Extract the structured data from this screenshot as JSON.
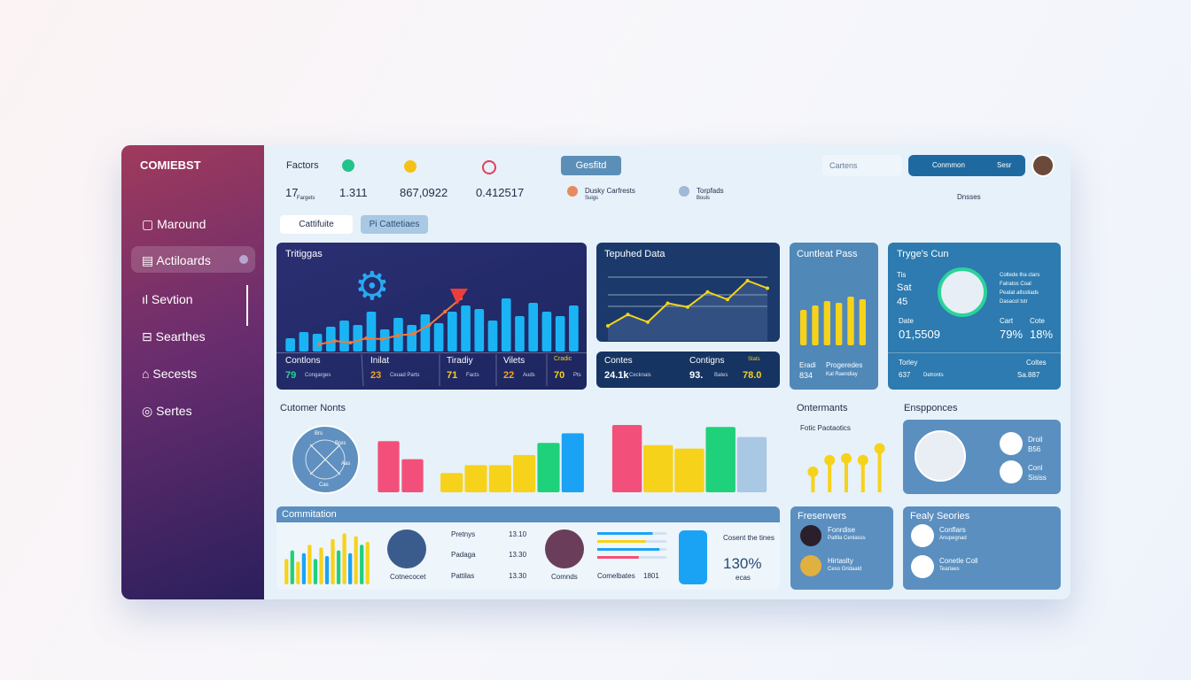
{
  "sidebar": {
    "brand": "COMIEBST",
    "items": [
      "Maround",
      "Actiloards",
      "Sevtion",
      "Searthes",
      "Secests",
      "Sertes"
    ]
  },
  "topbar": {
    "stats": [
      {
        "label": "Factors",
        "value": "17",
        "note": "Fargets"
      },
      {
        "value": "1.311"
      },
      {
        "value": "867,0922"
      },
      {
        "value": "0.412517"
      }
    ],
    "button": "Gesfitd",
    "users": [
      {
        "name": "Dusky Carfrests",
        "role": "Suigs"
      },
      {
        "name": "Torpfads",
        "role": "Bouls"
      }
    ],
    "search": "Cartens",
    "actions": [
      "Conmmon",
      "Sesr"
    ],
    "menu": "Dnsses"
  },
  "tabs": [
    "Cattifuite",
    "Pi Cattetiaes"
  ],
  "trends": {
    "title": "Tritiggas",
    "chart": {
      "type": "bar",
      "values": [
        15,
        22,
        20,
        28,
        35,
        30,
        45,
        25,
        38,
        30,
        42,
        32,
        45,
        52,
        48,
        35,
        60,
        40,
        55,
        45,
        40,
        52
      ],
      "ylim": [
        0,
        100
      ],
      "color": "#1ab4f5"
    },
    "line": {
      "values": [
        8,
        12,
        10,
        15,
        14,
        18,
        20,
        30,
        45,
        60
      ],
      "ylim": [
        0,
        100
      ],
      "color": "#f07a3a"
    },
    "stats": [
      {
        "label": "Contlons",
        "value": "79",
        "note": "Congarges"
      },
      {
        "label": "Inilat",
        "value": "23",
        "note": "Ceuad Parts"
      },
      {
        "label": "Tiradiy",
        "value": "71",
        "note": "Facts"
      },
      {
        "label": "Vilets",
        "value": "22",
        "note": "Auds"
      },
      {
        "label": "Cradic",
        "value": "70",
        "note": "Pts"
      }
    ]
  },
  "data_panel": {
    "title": "Tepuhed Data",
    "chart": {
      "type": "line",
      "values": [
        20,
        35,
        25,
        50,
        45,
        65,
        55,
        80,
        70
      ],
      "ylim": [
        0,
        100
      ],
      "color": "#f5d31c"
    },
    "stats": [
      {
        "label": "Contes",
        "value": "24.1k",
        "note": "Cecknais"
      },
      {
        "label": "Contigns",
        "value": "93.",
        "note": "Bates"
      },
      {
        "label": "Stats",
        "value": "78.0"
      }
    ]
  },
  "pass_panel": {
    "title": "Cuntleat Pass",
    "chart": {
      "type": "bar",
      "values": [
        40,
        45,
        50,
        48,
        55,
        52
      ],
      "ylim": [
        0,
        100
      ],
      "color": "#f7d21a"
    },
    "stats": [
      {
        "label": "Eradi",
        "value": "834"
      },
      {
        "label": "Progeredes",
        "value": "Kal Raendiay"
      }
    ]
  },
  "cun_panel": {
    "title": "Tryge's Cun",
    "rows": [
      {
        "label": "Tis",
        "value": "Sat"
      },
      {
        "label": "45"
      }
    ],
    "info": [
      "Coltede tha ctars",
      "Falratos Coal",
      "Peatat atlsstiads",
      "Dasacol tstr"
    ],
    "mid": [
      {
        "label": "Date",
        "value": "01,5509"
      },
      {
        "label": "Cart",
        "value": "79%"
      },
      {
        "label": "Cote",
        "value": "18%"
      }
    ],
    "foot": [
      {
        "label": "Torley",
        "value": "637",
        "note": "Detronts"
      },
      {
        "label": "Coltes",
        "value": "Sa.887"
      }
    ]
  },
  "customers": {
    "title": "Cutomer Nonts",
    "donut": [
      "Brs",
      "Bres",
      "Aas",
      "Cas"
    ],
    "pink": {
      "type": "bar",
      "values": [
        85,
        55
      ],
      "ylim": [
        0,
        100
      ],
      "color": "#f2507a"
    },
    "multi": {
      "type": "bar",
      "values": [
        32,
        45,
        45,
        62,
        82,
        98
      ],
      "ylim": [
        0,
        100
      ],
      "colors": [
        "#f7d21a",
        "#f7d21a",
        "#f7d21a",
        "#f7d21a",
        "#1fd17a",
        "#1aa3f5"
      ]
    },
    "big": {
      "type": "bar",
      "values": [
        100,
        70,
        65,
        97,
        82
      ],
      "ylim": [
        0,
        100
      ],
      "colors": [
        "#f2507a",
        "#f7d21a",
        "#f7d21a",
        "#1fd17a",
        "#a8c8e4"
      ]
    }
  },
  "ontermants": {
    "title": "Ontermants",
    "subtitle": "Fotic Paotaotics",
    "chart": {
      "type": "lollipop",
      "values": [
        35,
        55,
        58,
        55,
        75
      ],
      "ylim": [
        0,
        100
      ],
      "color": "#f7d21a"
    }
  },
  "enspponces": {
    "title": "Enspponces",
    "rows": [
      {
        "name": "Droil",
        "value": "B56"
      },
      {
        "name": "Conl",
        "value": "Sisiss"
      }
    ]
  },
  "commitation": {
    "title": "Commitation",
    "chart": {
      "type": "bar",
      "values": [
        45,
        60,
        40,
        55,
        70,
        45,
        65,
        50,
        80,
        60,
        90,
        55,
        85,
        70,
        75
      ],
      "ylim": [
        0,
        100
      ],
      "colors": [
        "#f7d21a",
        "#1fd17a",
        "#f7d21a",
        "#1aa3f5",
        "#f7d21a",
        "#1fd17a",
        "#f7d21a",
        "#1aa3f5",
        "#f7d21a",
        "#1fd17a",
        "#f7d21a",
        "#1aa3f5",
        "#f7d21a",
        "#1fd17a",
        "#f7d21a"
      ]
    },
    "person1": "Cotnecocet",
    "list": [
      {
        "name": "Pretnys",
        "value": "13.10"
      },
      {
        "name": "Padaga",
        "value": "13.30"
      },
      {
        "name": "Pattilas",
        "value": "13.30"
      }
    ],
    "person2": "Comnds",
    "progress": {
      "type": "hbar",
      "values": [
        80,
        70,
        90,
        60
      ],
      "xlim": [
        0,
        100
      ],
      "colors": [
        "#1aa3f5",
        "#f7d21a",
        "#1aa3f5",
        "#f2507a"
      ]
    },
    "progress_label": "Comelbates",
    "progress_value": "1801",
    "note": "Cosent the tines",
    "percent": "130%",
    "percent_note": "ecas"
  },
  "fresenvers": {
    "title": "Fresenvers",
    "rows": [
      {
        "name": "Fonrdise",
        "note": "Patllla Cenlasss"
      },
      {
        "name": "Hirtaslty",
        "note": "Ceso Gridaald"
      }
    ]
  },
  "fealy": {
    "title": "Fealy Seories",
    "rows": [
      {
        "name": "Conflars",
        "note": "Anupegnad"
      },
      {
        "name": "Conetle Coll",
        "note": "Tearlaes"
      }
    ]
  }
}
